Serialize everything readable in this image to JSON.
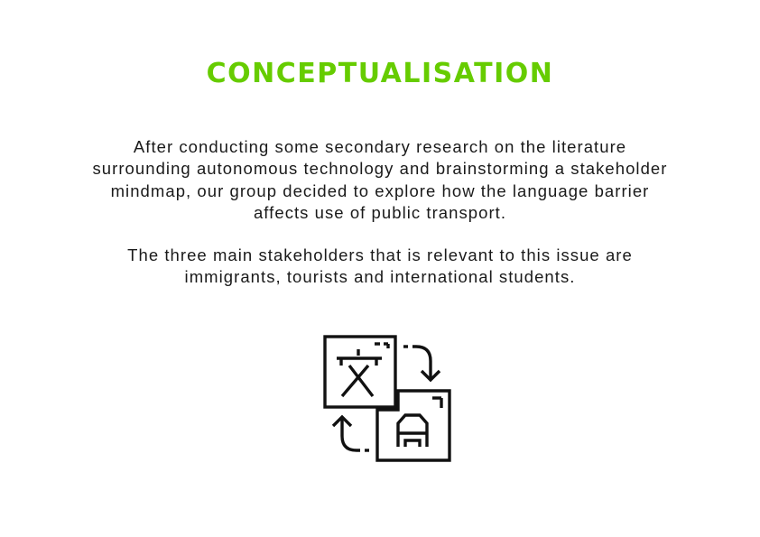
{
  "heading": "CONCEPTUALISATION",
  "paragraphs": [
    "After conducting some secondary research on the literature surrounding autonomous technology and brainstorming a stakeholder mindmap, our group decided to explore how the language barrier affects use of public transport.",
    "The three main stakeholders that is relevant to this issue are immigrants, tourists and international students."
  ],
  "icon": {
    "name": "translation-icon",
    "source_glyph": "文",
    "target_glyph": "A"
  },
  "colors": {
    "heading": "#66cc00",
    "text": "#1a1a1a",
    "icon": "#111111",
    "background": "#ffffff"
  }
}
